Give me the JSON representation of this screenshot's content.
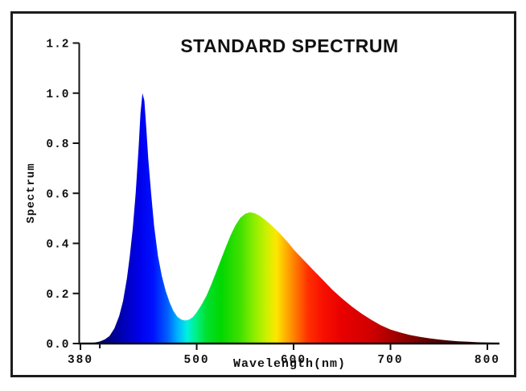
{
  "figure": {
    "title": "STANDARD SPECTRUM",
    "xlabel": "Wavelength(nm)",
    "ylabel": "Spectrum"
  },
  "chart_data": {
    "type": "area",
    "title": "STANDARD SPECTRUM",
    "xlabel": "Wavelength(nm)",
    "ylabel": "Spectrum",
    "xlim": [
      380,
      810
    ],
    "ylim": [
      0.0,
      1.2
    ],
    "x_ticks": [
      380,
      500,
      600,
      700,
      800
    ],
    "x_minor_ticks": [
      400
    ],
    "y_ticks": [
      0.0,
      0.2,
      0.4,
      0.6,
      0.8,
      1.0,
      1.2
    ],
    "grid": false,
    "legend": false,
    "description": "White-LED style emission spectrum: narrow blue peak near 444 nm (normalized 1.0), dip near 487 nm (~0.09), broad phosphor hump peaking near 553 nm (~0.52), long tail decaying to ~0 at 800 nm. Area fill is a visible-light wavelength gradient.",
    "series": [
      {
        "name": "spectrum",
        "points": [
          [
            385,
            0.001
          ],
          [
            390,
            0.002
          ],
          [
            395,
            0.004
          ],
          [
            400,
            0.008
          ],
          [
            405,
            0.016
          ],
          [
            410,
            0.03
          ],
          [
            415,
            0.06
          ],
          [
            420,
            0.11
          ],
          [
            424,
            0.17
          ],
          [
            428,
            0.26
          ],
          [
            431,
            0.35
          ],
          [
            434,
            0.46
          ],
          [
            437,
            0.6
          ],
          [
            440,
            0.78
          ],
          [
            442,
            0.92
          ],
          [
            444,
            1.0
          ],
          [
            446,
            0.97
          ],
          [
            448,
            0.86
          ],
          [
            450,
            0.74
          ],
          [
            453,
            0.6
          ],
          [
            456,
            0.47
          ],
          [
            460,
            0.35
          ],
          [
            464,
            0.27
          ],
          [
            468,
            0.21
          ],
          [
            472,
            0.165
          ],
          [
            476,
            0.13
          ],
          [
            480,
            0.107
          ],
          [
            484,
            0.096
          ],
          [
            488,
            0.092
          ],
          [
            492,
            0.095
          ],
          [
            496,
            0.105
          ],
          [
            500,
            0.125
          ],
          [
            505,
            0.155
          ],
          [
            510,
            0.19
          ],
          [
            515,
            0.235
          ],
          [
            520,
            0.285
          ],
          [
            525,
            0.335
          ],
          [
            530,
            0.385
          ],
          [
            535,
            0.432
          ],
          [
            540,
            0.472
          ],
          [
            545,
            0.502
          ],
          [
            550,
            0.518
          ],
          [
            555,
            0.524
          ],
          [
            560,
            0.52
          ],
          [
            565,
            0.51
          ],
          [
            570,
            0.496
          ],
          [
            575,
            0.48
          ],
          [
            580,
            0.462
          ],
          [
            585,
            0.443
          ],
          [
            590,
            0.422
          ],
          [
            595,
            0.4
          ],
          [
            600,
            0.376
          ],
          [
            610,
            0.335
          ],
          [
            620,
            0.295
          ],
          [
            630,
            0.255
          ],
          [
            640,
            0.215
          ],
          [
            650,
            0.18
          ],
          [
            660,
            0.148
          ],
          [
            670,
            0.12
          ],
          [
            680,
            0.095
          ],
          [
            690,
            0.073
          ],
          [
            700,
            0.056
          ],
          [
            710,
            0.044
          ],
          [
            720,
            0.034
          ],
          [
            730,
            0.027
          ],
          [
            740,
            0.021
          ],
          [
            750,
            0.016
          ],
          [
            760,
            0.012
          ],
          [
            770,
            0.009
          ],
          [
            780,
            0.007
          ],
          [
            790,
            0.005
          ],
          [
            800,
            0.004
          ],
          [
            810,
            0.003
          ]
        ]
      }
    ],
    "wavelength_gradient_stops": [
      [
        380,
        "#000020"
      ],
      [
        400,
        "#000060"
      ],
      [
        420,
        "#0000a8"
      ],
      [
        440,
        "#0000e8"
      ],
      [
        455,
        "#0010ff"
      ],
      [
        470,
        "#0060ff"
      ],
      [
        480,
        "#00b0ff"
      ],
      [
        490,
        "#00f0e0"
      ],
      [
        500,
        "#00f080"
      ],
      [
        510,
        "#00e030"
      ],
      [
        525,
        "#00d800"
      ],
      [
        545,
        "#40e000"
      ],
      [
        560,
        "#90ee00"
      ],
      [
        572,
        "#ccf000"
      ],
      [
        582,
        "#fce800"
      ],
      [
        592,
        "#ffb000"
      ],
      [
        602,
        "#ff7800"
      ],
      [
        615,
        "#ff3000"
      ],
      [
        630,
        "#f81000"
      ],
      [
        650,
        "#e80000"
      ],
      [
        680,
        "#d00000"
      ],
      [
        710,
        "#980000"
      ],
      [
        740,
        "#600000"
      ],
      [
        770,
        "#380000"
      ],
      [
        800,
        "#180000"
      ],
      [
        810,
        "#100000"
      ]
    ],
    "axis_color": "#111111",
    "frame_color": "#1c1c1c",
    "background_color": "#ffffff"
  }
}
